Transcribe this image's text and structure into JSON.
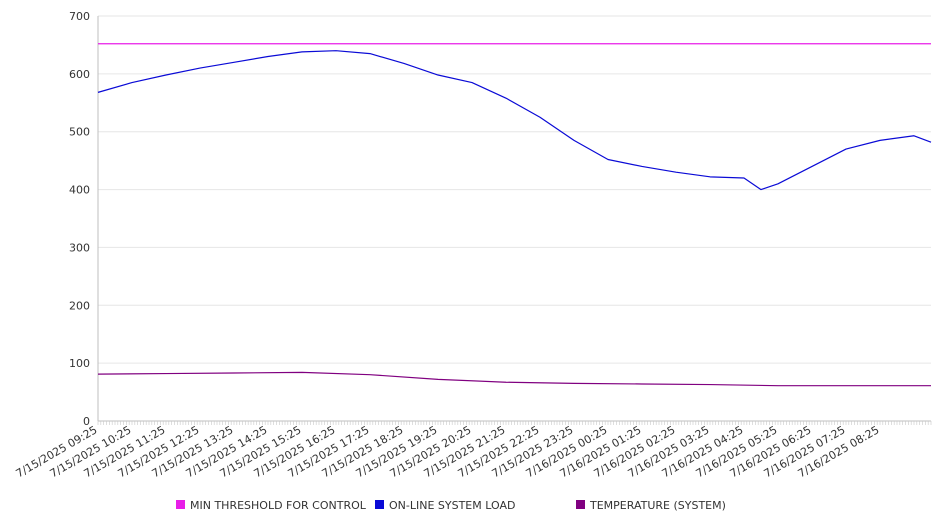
{
  "chart_data": {
    "type": "line",
    "title": "",
    "xlabel": "",
    "ylabel": "",
    "ylim": [
      0,
      700
    ],
    "y_ticks": [
      0,
      100,
      200,
      300,
      400,
      500,
      600,
      700
    ],
    "grid": true,
    "legend_position": "bottom",
    "x_start": "7/15/2025 09:25",
    "x_end": "7/16/2025 09:55",
    "x_tick_labels": [
      "7/15/2025 09:25",
      "7/15/2025 10:25",
      "7/15/2025 11:25",
      "7/15/2025 12:25",
      "7/15/2025 13:25",
      "7/15/2025 14:25",
      "7/15/2025 15:25",
      "7/15/2025 16:25",
      "7/15/2025 17:25",
      "7/15/2025 18:25",
      "7/15/2025 19:25",
      "7/15/2025 20:25",
      "7/15/2025 21:25",
      "7/15/2025 22:25",
      "7/15/2025 23:25",
      "7/16/2025 00:25",
      "7/16/2025 01:25",
      "7/16/2025 02:25",
      "7/16/2025 03:25",
      "7/16/2025 04:25",
      "7/16/2025 05:25",
      "7/16/2025 06:25",
      "7/16/2025 07:25",
      "7/16/2025 08:25"
    ],
    "series": [
      {
        "name": "MIN THRESHOLD FOR CONTROL",
        "color": "#e81ee8",
        "points": [
          [
            "7/15/2025 09:25",
            652
          ],
          [
            "7/16/2025 09:55",
            652
          ]
        ]
      },
      {
        "name": "ON-LINE SYSTEM LOAD",
        "color": "#0a0ad6",
        "points": [
          [
            "7/15/2025 09:25",
            568
          ],
          [
            "7/15/2025 10:25",
            585
          ],
          [
            "7/15/2025 11:25",
            598
          ],
          [
            "7/15/2025 12:25",
            610
          ],
          [
            "7/15/2025 13:25",
            620
          ],
          [
            "7/15/2025 14:25",
            630
          ],
          [
            "7/15/2025 15:25",
            638
          ],
          [
            "7/15/2025 16:25",
            640
          ],
          [
            "7/15/2025 17:25",
            635
          ],
          [
            "7/15/2025 18:25",
            618
          ],
          [
            "7/15/2025 19:25",
            598
          ],
          [
            "7/15/2025 20:25",
            585
          ],
          [
            "7/15/2025 21:25",
            558
          ],
          [
            "7/15/2025 22:25",
            525
          ],
          [
            "7/15/2025 23:25",
            485
          ],
          [
            "7/16/2025 00:25",
            452
          ],
          [
            "7/16/2025 01:25",
            440
          ],
          [
            "7/16/2025 02:25",
            430
          ],
          [
            "7/16/2025 03:25",
            422
          ],
          [
            "7/16/2025 04:25",
            420
          ],
          [
            "7/16/2025 04:55",
            400
          ],
          [
            "7/16/2025 05:25",
            410
          ],
          [
            "7/16/2025 06:25",
            440
          ],
          [
            "7/16/2025 07:25",
            470
          ],
          [
            "7/16/2025 08:25",
            485
          ],
          [
            "7/16/2025 09:25",
            493
          ],
          [
            "7/16/2025 09:55",
            482
          ]
        ]
      },
      {
        "name": "TEMPERATURE (SYSTEM)",
        "color": "#800080",
        "points": [
          [
            "7/15/2025 09:25",
            81
          ],
          [
            "7/15/2025 11:25",
            82
          ],
          [
            "7/15/2025 13:25",
            83
          ],
          [
            "7/15/2025 15:25",
            84
          ],
          [
            "7/15/2025 17:25",
            80
          ],
          [
            "7/15/2025 19:25",
            72
          ],
          [
            "7/15/2025 21:25",
            67
          ],
          [
            "7/15/2025 23:25",
            65
          ],
          [
            "7/16/2025 01:25",
            64
          ],
          [
            "7/16/2025 03:25",
            63
          ],
          [
            "7/16/2025 05:25",
            61
          ],
          [
            "7/16/2025 07:25",
            61
          ],
          [
            "7/16/2025 09:55",
            61
          ]
        ]
      }
    ]
  }
}
